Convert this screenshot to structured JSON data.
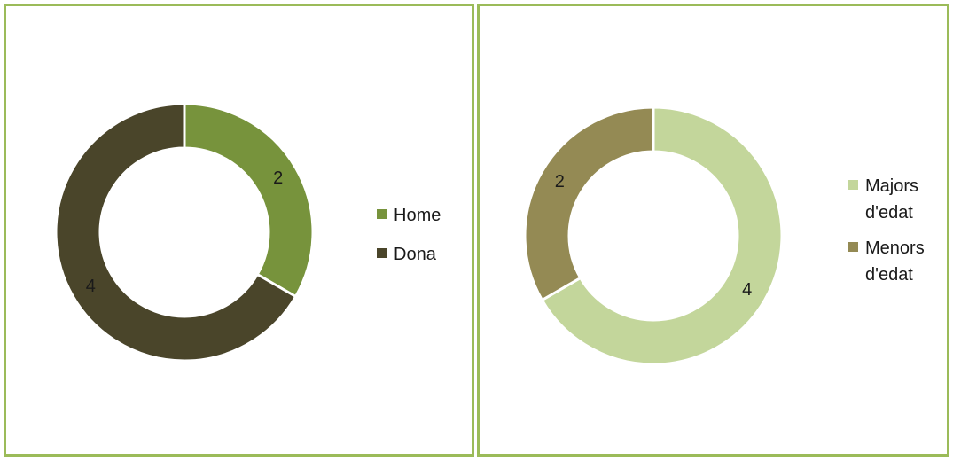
{
  "chart_data": [
    {
      "type": "pie",
      "subtype": "donut",
      "categories": [
        "Home",
        "Dona"
      ],
      "values": [
        2,
        4
      ],
      "colors": [
        "#77933c",
        "#4a452a"
      ],
      "data_labels": [
        "2",
        "4"
      ],
      "legend": {
        "position": "right",
        "entries": [
          "Home",
          "Dona"
        ]
      }
    },
    {
      "type": "pie",
      "subtype": "donut",
      "categories": [
        "Majors d'edat",
        "Menors d'edat"
      ],
      "values": [
        4,
        2
      ],
      "colors": [
        "#c3d69b",
        "#948a54"
      ],
      "data_labels": [
        "4",
        "2"
      ],
      "legend": {
        "position": "right",
        "entries": [
          "Majors d'edat",
          "Menors d'edat"
        ]
      }
    }
  ],
  "colors": {
    "border": "#9bbb59",
    "background": "#ffffff"
  }
}
